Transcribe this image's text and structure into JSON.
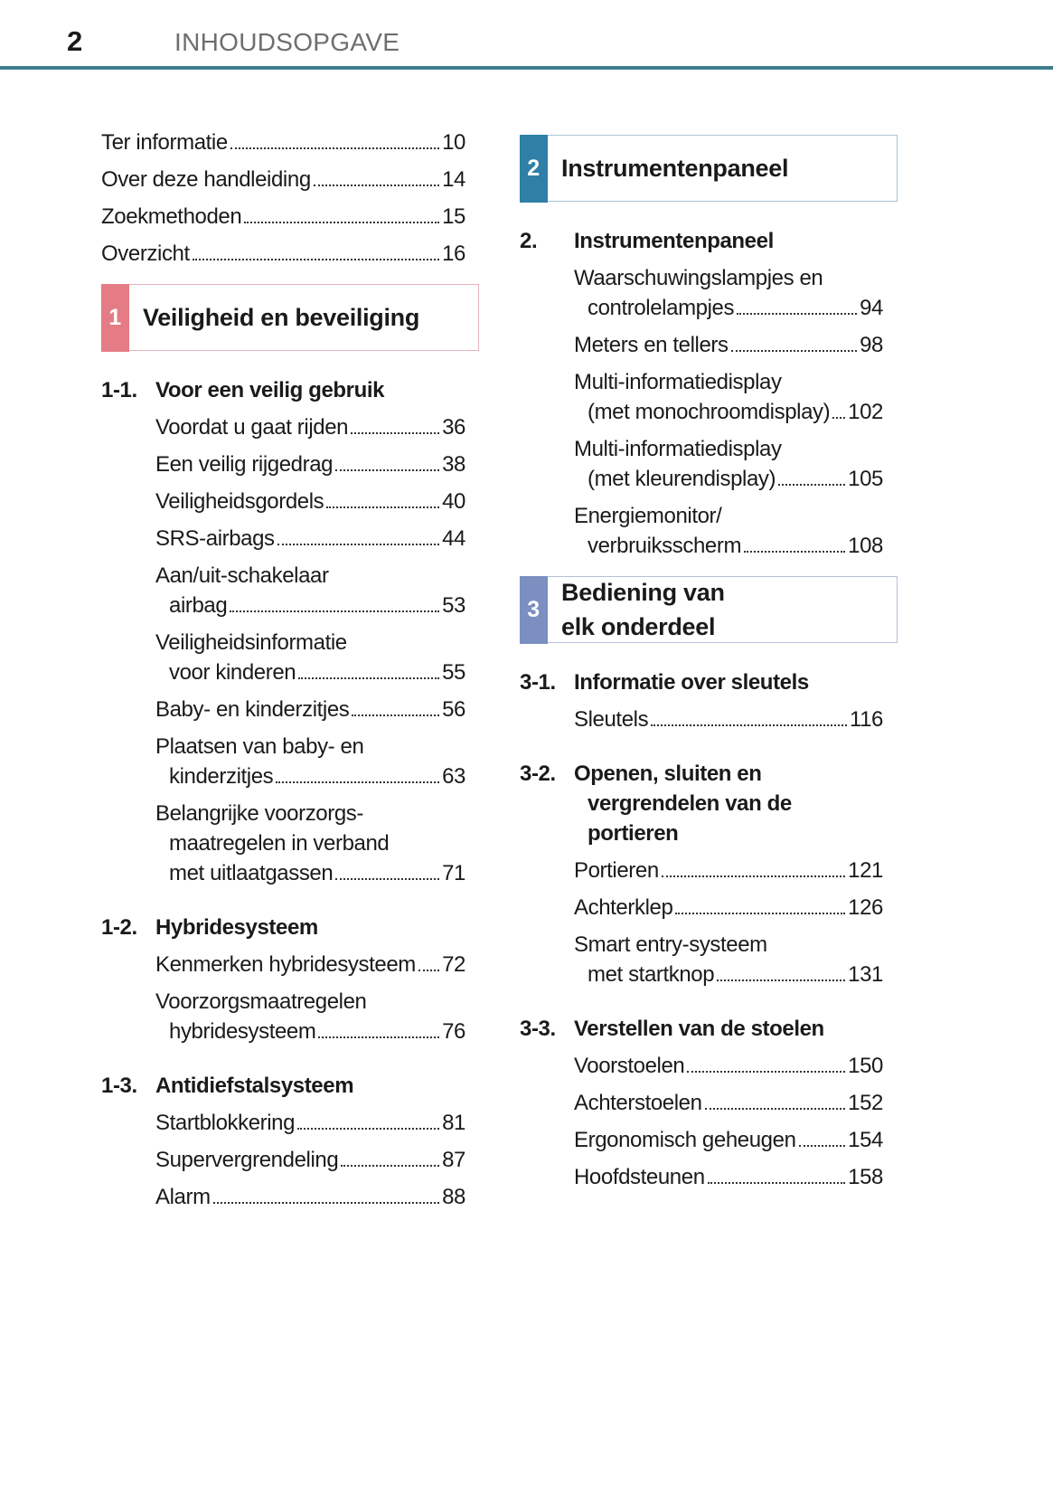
{
  "header": {
    "page_number": "2",
    "title": "INHOUDSOPGAVE"
  },
  "colors": {
    "rule": "#3f7d8c",
    "section1": "#e57c85",
    "section2": "#2f7fa6",
    "section3": "#7b8fc0"
  },
  "left": {
    "top_entries": [
      {
        "lines": [
          "Ter informatie"
        ],
        "page": "10"
      },
      {
        "lines": [
          "Over deze handleiding"
        ],
        "page": "14"
      },
      {
        "lines": [
          "Zoekmethoden"
        ],
        "page": "15"
      },
      {
        "lines": [
          "Overzicht"
        ],
        "page": "16"
      }
    ],
    "box": {
      "num": "1",
      "title_lines": [
        "Veiligheid en beveiliging"
      ],
      "color": "#e57c85",
      "border": "#e8b4bb"
    },
    "sections": [
      {
        "num": "1-1.",
        "title_lines": [
          "Voor een veilig gebruik"
        ],
        "entries": [
          {
            "lines": [
              "Voordat u gaat rijden"
            ],
            "page": "36"
          },
          {
            "lines": [
              "Een veilig rijgedrag"
            ],
            "page": "38"
          },
          {
            "lines": [
              "Veiligheidsgordels"
            ],
            "page": "40"
          },
          {
            "lines": [
              "SRS-airbags"
            ],
            "page": "44"
          },
          {
            "lines": [
              "Aan/uit-schakelaar",
              "airbag"
            ],
            "page": "53"
          },
          {
            "lines": [
              "Veiligheidsinformatie",
              "voor kinderen"
            ],
            "page": "55"
          },
          {
            "lines": [
              "Baby- en kinderzitjes"
            ],
            "page": "56"
          },
          {
            "lines": [
              "Plaatsen van baby- en",
              "kinderzitjes"
            ],
            "page": "63"
          },
          {
            "lines": [
              "Belangrijke voorzorgs-",
              "maatregelen in verband",
              "met uitlaatgassen"
            ],
            "page": "71"
          }
        ]
      },
      {
        "num": "1-2.",
        "title_lines": [
          "Hybridesysteem"
        ],
        "entries": [
          {
            "lines": [
              "Kenmerken hybridesysteem"
            ],
            "page": "72"
          },
          {
            "lines": [
              "Voorzorgsmaatregelen",
              "hybridesysteem"
            ],
            "page": "76"
          }
        ]
      },
      {
        "num": "1-3.",
        "title_lines": [
          "Antidiefstalsysteem"
        ],
        "entries": [
          {
            "lines": [
              "Startblokkering"
            ],
            "page": "81"
          },
          {
            "lines": [
              "Supervergrendeling"
            ],
            "page": "87"
          },
          {
            "lines": [
              "Alarm"
            ],
            "page": "88"
          }
        ]
      }
    ]
  },
  "right": {
    "blocks": [
      {
        "box": {
          "num": "2",
          "title_lines": [
            "Instrumentenpaneel"
          ],
          "color": "#2f7fa6",
          "border": "#a9c4d6"
        },
        "sections": [
          {
            "num": "2.",
            "title_lines": [
              "Instrumentenpaneel"
            ],
            "entries": [
              {
                "lines": [
                  "Waarschuwingslampjes en",
                  "controlelampjes"
                ],
                "page": "94"
              },
              {
                "lines": [
                  "Meters en tellers"
                ],
                "page": "98"
              },
              {
                "lines": [
                  "Multi-informatiedisplay",
                  "(met monochroomdisplay)"
                ],
                "page": "102"
              },
              {
                "lines": [
                  "Multi-informatiedisplay",
                  "(met kleurendisplay)"
                ],
                "page": "105"
              },
              {
                "lines": [
                  "Energiemonitor/",
                  "verbruiksscherm"
                ],
                "page": "108"
              }
            ]
          }
        ]
      },
      {
        "box": {
          "num": "3",
          "title_lines": [
            "Bediening van",
            "elk onderdeel"
          ],
          "color": "#7b8fc0",
          "border": "#b7c0d8"
        },
        "sections": [
          {
            "num": "3-1.",
            "title_lines": [
              "Informatie over sleutels"
            ],
            "entries": [
              {
                "lines": [
                  "Sleutels"
                ],
                "page": "116"
              }
            ]
          },
          {
            "num": "3-2.",
            "title_lines": [
              "Openen, sluiten en",
              "vergrendelen van de",
              "portieren"
            ],
            "entries": [
              {
                "lines": [
                  "Portieren"
                ],
                "page": "121"
              },
              {
                "lines": [
                  "Achterklep"
                ],
                "page": "126"
              },
              {
                "lines": [
                  "Smart entry-systeem",
                  "met startknop"
                ],
                "page": "131"
              }
            ]
          },
          {
            "num": "3-3.",
            "title_lines": [
              "Verstellen van de stoelen"
            ],
            "entries": [
              {
                "lines": [
                  "Voorstoelen"
                ],
                "page": "150"
              },
              {
                "lines": [
                  "Achterstoelen"
                ],
                "page": "152"
              },
              {
                "lines": [
                  "Ergonomisch geheugen"
                ],
                "page": "154"
              },
              {
                "lines": [
                  "Hoofdsteunen"
                ],
                "page": "158"
              }
            ]
          }
        ]
      }
    ]
  }
}
